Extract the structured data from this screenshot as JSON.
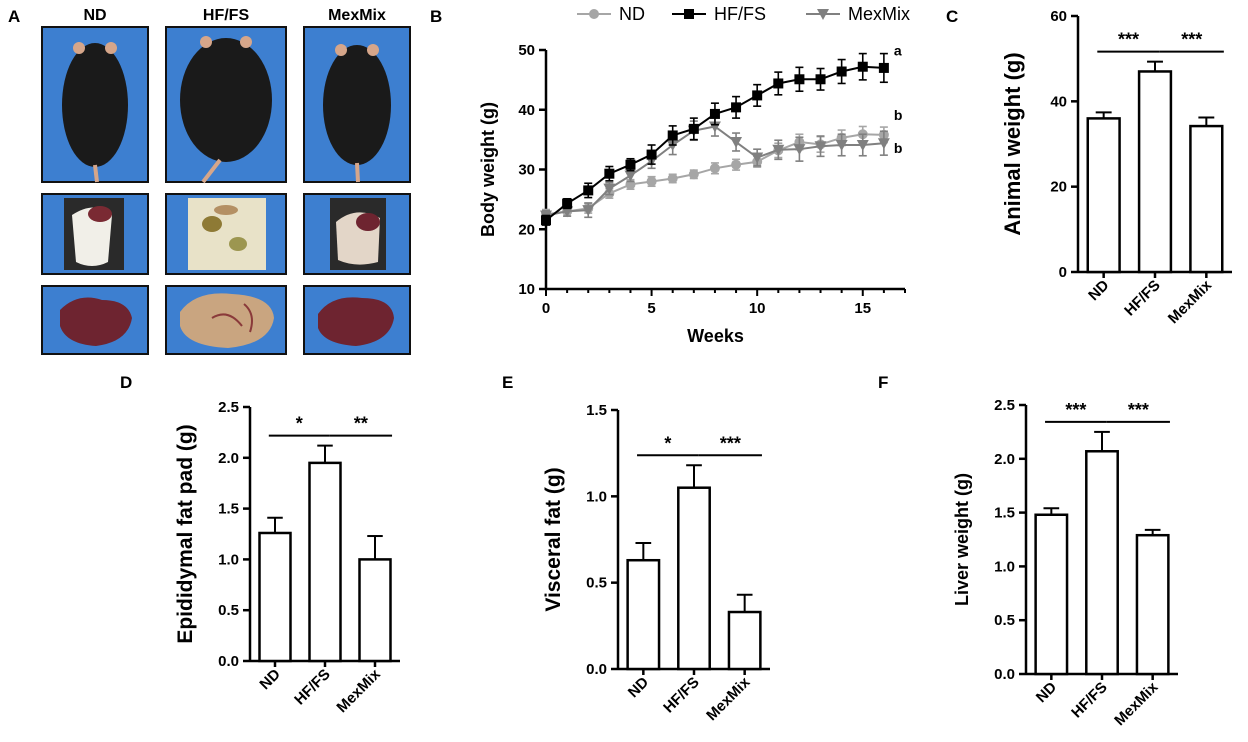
{
  "panel_labels": {
    "A": "A",
    "B": "B",
    "C": "C",
    "D": "D",
    "E": "E",
    "F": "F"
  },
  "photo_panel": {
    "groups": [
      "ND",
      "HF/FS",
      "MexMix"
    ],
    "rows": [
      "whole mouse",
      "abdominal cavity",
      "liver"
    ]
  },
  "colors": {
    "ND": "#a6a6a6",
    "HF/FS": "#000000",
    "MexMix": "#808080",
    "photo_bg": "#3d7fd0",
    "fur": "#1a1a1a",
    "liver_dark": "#6e2430",
    "liver_fatty": "#c9a580"
  },
  "chart_data": [
    {
      "id": "B",
      "type": "line",
      "title": "",
      "xlabel": "Weeks",
      "ylabel": "Body weight (g)",
      "xlim": [
        0,
        17
      ],
      "ylim": [
        10,
        50
      ],
      "xticks": [
        0,
        5,
        10,
        15
      ],
      "yticks": [
        10,
        20,
        30,
        40,
        50
      ],
      "legend": [
        "ND",
        "HF/FS",
        "MexMix"
      ],
      "legend_position": "top",
      "series": [
        {
          "name": "ND",
          "marker": "circle",
          "x": [
            0,
            1,
            2,
            3,
            4,
            5,
            6,
            7,
            8,
            9,
            10,
            11,
            12,
            13,
            14,
            15,
            16
          ],
          "y": [
            22.5,
            23,
            23.5,
            26,
            27.5,
            28,
            28.5,
            29.2,
            30.2,
            30.8,
            31.3,
            33.2,
            34.6,
            34.2,
            35.3,
            35.9,
            35.8
          ],
          "err": [
            0.8,
            0.8,
            0.8,
            0.8,
            0.8,
            0.8,
            0.7,
            0.7,
            0.9,
            0.9,
            0.9,
            1.2,
            1.3,
            1.3,
            1.3,
            1.3,
            1.3
          ]
        },
        {
          "name": "HF/FS",
          "marker": "square",
          "x": [
            0,
            1,
            2,
            3,
            4,
            5,
            6,
            7,
            8,
            9,
            10,
            11,
            12,
            13,
            14,
            15,
            16
          ],
          "y": [
            21.5,
            24.3,
            26.5,
            29.3,
            30.8,
            32.5,
            35.7,
            36.8,
            39.3,
            40.4,
            42.4,
            44.4,
            45.1,
            45.1,
            46.4,
            47.2,
            47
          ],
          "err": [
            0.8,
            0.8,
            1.2,
            1.2,
            1,
            1.6,
            1.6,
            1.8,
            1.8,
            1.8,
            1.8,
            1.9,
            2,
            1.8,
            2,
            2.2,
            2.4
          ]
        },
        {
          "name": "MexMix",
          "marker": "triangle-down",
          "x": [
            0,
            1,
            2,
            3,
            4,
            5,
            6,
            7,
            8,
            9,
            10,
            11,
            12,
            13,
            14,
            15,
            16
          ],
          "y": [
            22.3,
            23,
            23.2,
            26.8,
            29,
            31.4,
            34.1,
            36.5,
            37.2,
            34.6,
            32,
            33.3,
            33.4,
            33.9,
            34.1,
            34.1,
            34.4
          ],
          "err": [
            0.8,
            0.8,
            1.2,
            1,
            1,
            1.2,
            1.6,
            1.6,
            1.6,
            1.5,
            1.4,
            1.6,
            2,
            1.7,
            1.8,
            1.8,
            2
          ]
        }
      ],
      "annotations": [
        {
          "text": "a",
          "series": "HF/FS"
        },
        {
          "text": "b",
          "series": "ND"
        },
        {
          "text": "b",
          "series": "MexMix"
        }
      ]
    },
    {
      "id": "C",
      "type": "bar",
      "ylabel": "Animal weight (g)",
      "categories": [
        "ND",
        "HF/FS",
        "MexMix"
      ],
      "values": [
        36,
        47,
        34.2
      ],
      "errors": [
        1.4,
        2.3,
        2
      ],
      "ylim": [
        0,
        60
      ],
      "yticks": [
        0,
        20,
        40,
        60
      ],
      "significance": [
        {
          "pair": [
            0,
            1
          ],
          "label": "***"
        },
        {
          "pair": [
            1,
            2
          ],
          "label": "***"
        }
      ]
    },
    {
      "id": "D",
      "type": "bar",
      "ylabel": "Epididymal fat pad (g)",
      "categories": [
        "ND",
        "HF/FS",
        "MexMix"
      ],
      "values": [
        1.26,
        1.95,
        1.0
      ],
      "errors": [
        0.15,
        0.17,
        0.23
      ],
      "ylim": [
        0,
        2.5
      ],
      "yticks": [
        "0.0",
        "0.5",
        "1.0",
        "1.5",
        "2.0",
        "2.5"
      ],
      "significance": [
        {
          "pair": [
            0,
            1
          ],
          "label": "*"
        },
        {
          "pair": [
            1,
            2
          ],
          "label": "**"
        }
      ]
    },
    {
      "id": "E",
      "type": "bar",
      "ylabel": "Visceral fat (g)",
      "categories": [
        "ND",
        "HF/FS",
        "MexMix"
      ],
      "values": [
        0.63,
        1.05,
        0.33
      ],
      "errors": [
        0.1,
        0.13,
        0.1
      ],
      "ylim": [
        0,
        1.5
      ],
      "yticks": [
        "0.0",
        "0.5",
        "1.0",
        "1.5"
      ],
      "significance": [
        {
          "pair": [
            0,
            1
          ],
          "label": "*"
        },
        {
          "pair": [
            1,
            2
          ],
          "label": "***"
        }
      ]
    },
    {
      "id": "F",
      "type": "bar",
      "ylabel": "Liver weight (g)",
      "categories": [
        "ND",
        "HF/FS",
        "MexMix"
      ],
      "values": [
        1.48,
        2.07,
        1.29
      ],
      "errors": [
        0.06,
        0.18,
        0.05
      ],
      "ylim": [
        0,
        2.5
      ],
      "yticks": [
        "0.0",
        "0.5",
        "1.0",
        "1.5",
        "2.0",
        "2.5"
      ],
      "significance": [
        {
          "pair": [
            0,
            1
          ],
          "label": "***"
        },
        {
          "pair": [
            1,
            2
          ],
          "label": "***"
        }
      ]
    }
  ]
}
